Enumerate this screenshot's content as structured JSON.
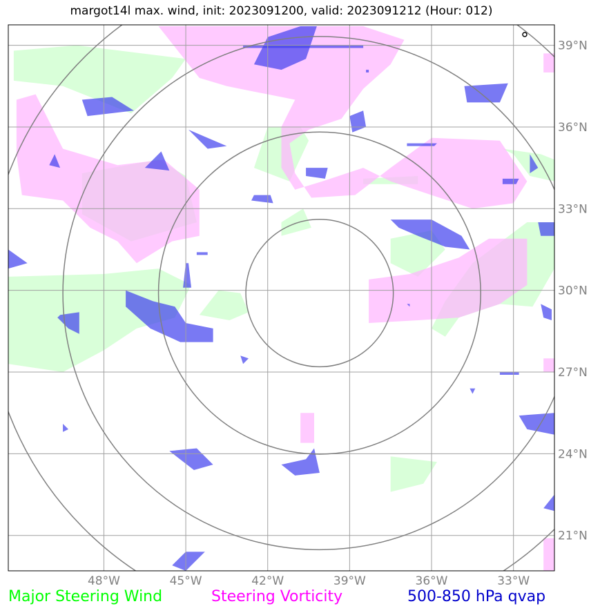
{
  "title": "margot14l max. wind, init: 2023091200, valid: 2023091212 (Hour: 012)",
  "map": {
    "lon_range": [
      -51.5,
      -31.5
    ],
    "lat_range": [
      19.7,
      39.75
    ],
    "lon_ticks": [
      {
        "value": -48,
        "label": "48°W"
      },
      {
        "value": -45,
        "label": "45°W"
      },
      {
        "value": -42,
        "label": "42°W"
      },
      {
        "value": -39,
        "label": "39°W"
      },
      {
        "value": -36,
        "label": "36°W"
      },
      {
        "value": -33,
        "label": "33°W"
      }
    ],
    "lat_ticks": [
      {
        "value": 39,
        "label": "39°N"
      },
      {
        "value": 36,
        "label": "36°N"
      },
      {
        "value": 33,
        "label": "33°N"
      },
      {
        "value": 30,
        "label": "30°N"
      },
      {
        "value": 27,
        "label": "27°N"
      },
      {
        "value": 24,
        "label": "24°N"
      },
      {
        "value": 21,
        "label": "21°N"
      }
    ],
    "storm_center": {
      "lon": -40.1,
      "lat": 29.9
    },
    "range_ring_radii_deg": [
      2.7,
      5.9,
      9.4,
      12.2
    ],
    "grid_color": "#a0a0a0",
    "ring_color": "#808080"
  },
  "colors": {
    "wind": "#ccffcc",
    "vorticity": "#ffb3ff",
    "qvap": "#4040ee"
  },
  "layers": {
    "wind": [
      [
        [
          -51.3,
          37.7
        ],
        [
          -49.5,
          37.5
        ],
        [
          -47,
          36.5
        ],
        [
          -45.5,
          37.8
        ],
        [
          -45,
          38.5
        ],
        [
          -49,
          39
        ],
        [
          -51.3,
          38.8
        ]
      ],
      [
        [
          -48.8,
          34.3
        ],
        [
          -46,
          34.8
        ],
        [
          -45,
          34.2
        ],
        [
          -44.6,
          32.5
        ],
        [
          -47,
          31.8
        ],
        [
          -48.8,
          32.8
        ]
      ],
      [
        [
          -41.2,
          34
        ],
        [
          -40.5,
          35.5
        ],
        [
          -40.8,
          36
        ],
        [
          -42,
          36
        ],
        [
          -42.5,
          34.5
        ]
      ],
      [
        [
          -41.5,
          32.5
        ],
        [
          -40.7,
          33
        ],
        [
          -40.4,
          32.3
        ],
        [
          -41.5,
          32
        ]
      ],
      [
        [
          -51.5,
          30.5
        ],
        [
          -48,
          30.6
        ],
        [
          -46,
          30.8
        ],
        [
          -44.8,
          30.2
        ],
        [
          -45.4,
          29
        ],
        [
          -46.8,
          28.6
        ],
        [
          -48,
          27.8
        ],
        [
          -49.5,
          27
        ],
        [
          -51.5,
          27.3
        ]
      ],
      [
        [
          -44.5,
          29.1
        ],
        [
          -43.8,
          30
        ],
        [
          -43,
          29.9
        ],
        [
          -42.7,
          29.2
        ],
        [
          -43.4,
          28.9
        ]
      ],
      [
        [
          -37.5,
          31.9
        ],
        [
          -36,
          32.2
        ],
        [
          -35.5,
          31.5
        ],
        [
          -36.5,
          30.5
        ],
        [
          -37.5,
          31
        ]
      ],
      [
        [
          -34.5,
          31
        ],
        [
          -32.5,
          32.5
        ],
        [
          -31.5,
          32.5
        ],
        [
          -31.5,
          30.8
        ],
        [
          -32.3,
          29.4
        ],
        [
          -33.5,
          29.5
        ],
        [
          -35,
          29
        ],
        [
          -35.5,
          28.3
        ],
        [
          -36,
          28.6
        ],
        [
          -35.5,
          29.6
        ]
      ],
      [
        [
          -33.4,
          35.2
        ],
        [
          -32,
          35
        ],
        [
          -31.5,
          34.8
        ],
        [
          -31.5,
          34
        ],
        [
          -32.4,
          34.2
        ],
        [
          -33,
          35
        ]
      ],
      [
        [
          -38.5,
          34.1
        ],
        [
          -36.5,
          34.2
        ],
        [
          -36.5,
          33.9
        ],
        [
          -38.5,
          33.9
        ]
      ],
      [
        [
          -37.5,
          23.9
        ],
        [
          -35.8,
          23.7
        ],
        [
          -36.3,
          22.9
        ],
        [
          -37.5,
          22.6
        ]
      ]
    ],
    "vorticity": [
      [
        [
          -46,
          39.7
        ],
        [
          -38.5,
          39.7
        ],
        [
          -37,
          39.2
        ],
        [
          -37.5,
          38.3
        ],
        [
          -38.5,
          37.4
        ],
        [
          -39.3,
          36.3
        ],
        [
          -40.5,
          35.9
        ],
        [
          -41.2,
          35.4
        ],
        [
          -41,
          34.3
        ],
        [
          -40.4,
          33.4
        ],
        [
          -38.8,
          33.5
        ],
        [
          -37.5,
          34.5
        ],
        [
          -36,
          35.6
        ],
        [
          -33.5,
          35.5
        ],
        [
          -32.5,
          34
        ],
        [
          -33,
          33.2
        ],
        [
          -34.5,
          33
        ],
        [
          -36,
          33.5
        ],
        [
          -37.5,
          34
        ],
        [
          -38.5,
          34.5
        ],
        [
          -40,
          34
        ],
        [
          -41,
          33.7
        ],
        [
          -41.5,
          34.5
        ],
        [
          -41.5,
          36
        ],
        [
          -41,
          37
        ],
        [
          -42.5,
          37.3
        ],
        [
          -43.5,
          37.5
        ],
        [
          -44.5,
          37.8
        ]
      ],
      [
        [
          -51.2,
          37
        ],
        [
          -50.5,
          37.2
        ],
        [
          -49.5,
          35.2
        ],
        [
          -47.5,
          34.6
        ],
        [
          -45.8,
          34.8
        ],
        [
          -44.5,
          33.7
        ],
        [
          -44.5,
          32
        ],
        [
          -45.5,
          31.8
        ],
        [
          -46.8,
          31
        ],
        [
          -47.5,
          31.8
        ],
        [
          -48.5,
          32.3
        ],
        [
          -49.5,
          33.3
        ],
        [
          -51,
          33.5
        ],
        [
          -51.2,
          35
        ]
      ],
      [
        [
          -38.3,
          30.4
        ],
        [
          -36.8,
          30.6
        ],
        [
          -35,
          31.2
        ],
        [
          -33.9,
          31.9
        ],
        [
          -32.5,
          31.9
        ],
        [
          -32.5,
          30.2
        ],
        [
          -33.5,
          29.5
        ],
        [
          -35,
          29
        ],
        [
          -36.5,
          28.9
        ],
        [
          -38.3,
          28.8
        ]
      ],
      [
        [
          -40.8,
          25.5
        ],
        [
          -40.3,
          25.5
        ],
        [
          -40.3,
          24.4
        ],
        [
          -40.8,
          24.4
        ]
      ],
      [
        [
          -31.9,
          20.9
        ],
        [
          -31.5,
          20.9
        ],
        [
          -31.5,
          19.7
        ],
        [
          -31.9,
          19.7
        ]
      ],
      [
        [
          -31.9,
          38.7
        ],
        [
          -31.5,
          38.7
        ],
        [
          -31.5,
          38
        ],
        [
          -31.9,
          38
        ]
      ],
      [
        [
          -31.9,
          27.5
        ],
        [
          -31.5,
          27.5
        ],
        [
          -31.5,
          27
        ],
        [
          -31.9,
          27
        ]
      ]
    ],
    "qvap": [
      [
        [
          -42,
          39.3
        ],
        [
          -40.8,
          39.7
        ],
        [
          -40.2,
          39.7
        ],
        [
          -40.6,
          38.5
        ],
        [
          -41.5,
          38.1
        ],
        [
          -42.5,
          38.3
        ]
      ],
      [
        [
          -39,
          36.4
        ],
        [
          -38.5,
          36.6
        ],
        [
          -38.4,
          36
        ],
        [
          -38.9,
          35.8
        ]
      ],
      [
        [
          -40.6,
          34.5
        ],
        [
          -39.8,
          34.5
        ],
        [
          -39.9,
          34.1
        ],
        [
          -40.6,
          34.2
        ]
      ],
      [
        [
          -34.8,
          37.5
        ],
        [
          -33.2,
          37.6
        ],
        [
          -33.5,
          36.9
        ],
        [
          -34.7,
          36.9
        ]
      ],
      [
        [
          -48.8,
          37
        ],
        [
          -47.7,
          37.1
        ],
        [
          -46.9,
          36.6
        ],
        [
          -48.6,
          36.4
        ]
      ],
      [
        [
          -45.9,
          35.1
        ],
        [
          -46.5,
          34.5
        ],
        [
          -45.6,
          34.4
        ]
      ],
      [
        [
          -44.9,
          35.9
        ],
        [
          -43.5,
          35.3
        ],
        [
          -44.2,
          35.2
        ],
        [
          -44.6,
          35.6
        ]
      ],
      [
        [
          -36.9,
          35.4
        ],
        [
          -35.8,
          35.4
        ],
        [
          -35.9,
          35.3
        ],
        [
          -36.9,
          35.3
        ]
      ],
      [
        [
          -33.4,
          34.1
        ],
        [
          -32.8,
          34.1
        ],
        [
          -32.9,
          33.9
        ],
        [
          -33.4,
          33.9
        ]
      ],
      [
        [
          -32.4,
          35.0
        ],
        [
          -32.1,
          34.5
        ],
        [
          -32.4,
          34.3
        ]
      ],
      [
        [
          -31.5,
          32.5
        ],
        [
          -32.1,
          32.5
        ],
        [
          -32,
          32
        ],
        [
          -31.5,
          32
        ]
      ],
      [
        [
          -37.5,
          32.6
        ],
        [
          -36,
          32.6
        ],
        [
          -34.9,
          32
        ],
        [
          -34.6,
          31.5
        ],
        [
          -35.5,
          31.6
        ],
        [
          -36.5,
          32
        ],
        [
          -37.2,
          32.3
        ]
      ],
      [
        [
          -49.8,
          35
        ],
        [
          -50,
          34.6
        ],
        [
          -49.6,
          34.5
        ]
      ],
      [
        [
          -42.5,
          33.5
        ],
        [
          -41.9,
          33.5
        ],
        [
          -41.8,
          33.2
        ],
        [
          -42.6,
          33.3
        ]
      ],
      [
        [
          -51.5,
          31.5
        ],
        [
          -50.8,
          31
        ],
        [
          -51.5,
          30.8
        ]
      ],
      [
        [
          -45,
          31
        ],
        [
          -44.9,
          31
        ],
        [
          -44.8,
          30.1
        ],
        [
          -45.1,
          30.1
        ]
      ],
      [
        [
          -47.2,
          30
        ],
        [
          -46.2,
          29.6
        ],
        [
          -45.4,
          29.4
        ],
        [
          -45,
          28.8
        ],
        [
          -44,
          28.6
        ],
        [
          -44,
          28.1
        ],
        [
          -45.2,
          28.1
        ],
        [
          -46.3,
          28.6
        ],
        [
          -47.2,
          29.4
        ]
      ],
      [
        [
          -49.6,
          29.1
        ],
        [
          -48.9,
          29.2
        ],
        [
          -48.9,
          28.4
        ],
        [
          -49.3,
          28.6
        ],
        [
          -49.7,
          29
        ]
      ],
      [
        [
          -44.6,
          31.4
        ],
        [
          -44.2,
          31.4
        ],
        [
          -44.2,
          31.3
        ],
        [
          -44.6,
          31.3
        ]
      ],
      [
        [
          -32,
          29.5
        ],
        [
          -31.6,
          29.3
        ],
        [
          -31.6,
          28.9
        ],
        [
          -31.9,
          29
        ]
      ],
      [
        [
          -43,
          27.6
        ],
        [
          -42.7,
          27.5
        ],
        [
          -42.9,
          27.3
        ]
      ],
      [
        [
          -49.5,
          25.1
        ],
        [
          -49.3,
          24.9
        ],
        [
          -49.5,
          24.8
        ]
      ],
      [
        [
          -33.5,
          27
        ],
        [
          -32.8,
          27
        ],
        [
          -32.8,
          26.9
        ],
        [
          -33.5,
          26.9
        ]
      ],
      [
        [
          -31.5,
          25.5
        ],
        [
          -32.8,
          25.4
        ],
        [
          -32.5,
          24.9
        ],
        [
          -31.5,
          24.7
        ]
      ],
      [
        [
          -45.6,
          24.1
        ],
        [
          -44.6,
          24.2
        ],
        [
          -44,
          23.6
        ],
        [
          -44.7,
          23.4
        ]
      ],
      [
        [
          -41.5,
          23.6
        ],
        [
          -40.6,
          23.8
        ],
        [
          -40.3,
          24.2
        ],
        [
          -40.1,
          23.3
        ],
        [
          -41,
          23.2
        ]
      ],
      [
        [
          -45,
          20.4
        ],
        [
          -44.3,
          20.4
        ],
        [
          -45,
          19.7
        ],
        [
          -45.5,
          19.9
        ]
      ],
      [
        [
          -31.9,
          22
        ],
        [
          -31.5,
          22.5
        ],
        [
          -31.5,
          21.9
        ]
      ],
      [
        [
          -42.9,
          39
        ],
        [
          -38.5,
          39
        ],
        [
          -38.5,
          38.9
        ],
        [
          -42.9,
          38.9
        ]
      ],
      [
        [
          -38.4,
          38.1
        ],
        [
          -38.3,
          38.1
        ],
        [
          -38.3,
          38
        ],
        [
          -38.4,
          38
        ]
      ],
      [
        [
          -36.9,
          29.5
        ],
        [
          -36.8,
          29.5
        ],
        [
          -36.8,
          29.4
        ]
      ],
      [
        [
          -34.6,
          26.4
        ],
        [
          -34.4,
          26.4
        ],
        [
          -34.5,
          26.2
        ]
      ]
    ]
  },
  "legend": [
    {
      "label": "Major Steering Wind",
      "color": "#00ff00"
    },
    {
      "label": "Steering Vorticity",
      "color": "#ff00ff"
    },
    {
      "label": "500-850 hPa qvap",
      "color": "#0000cc"
    }
  ]
}
